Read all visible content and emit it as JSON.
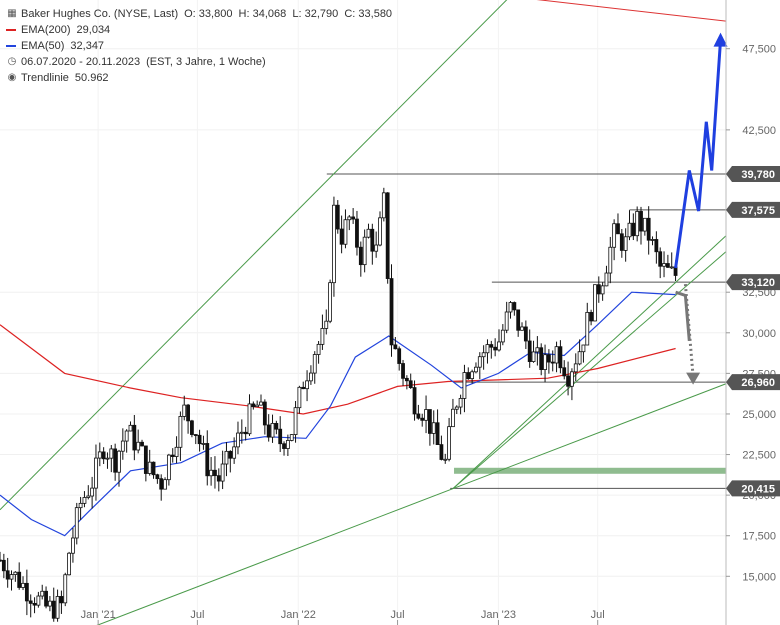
{
  "header": {
    "instrument": "Baker Hughes Co. (NYSE, Last)",
    "ohlc": "O: 33,800  H: 34,068  L: 32,790  C: 33,580",
    "ema200_label": "EMA(200)",
    "ema200_value": "29,034",
    "ema50_label": "EMA(50)",
    "ema50_value": "32,347",
    "range": "06.07.2020 - 20.11.2023",
    "range_detail": "(EST, 3 Jahre, 1 Woche)",
    "trendline_label": "Trendlinie",
    "trendline_value": "50.962"
  },
  "chart_data": {
    "type": "candlestick",
    "title": "Baker Hughes Co. (NYSE, Last)",
    "x_ticks": [
      {
        "date": "2021-01-01",
        "label": "Jan '21"
      },
      {
        "date": "2021-07-01",
        "label": "Jul"
      },
      {
        "date": "2022-01-01",
        "label": "Jan '22"
      },
      {
        "date": "2022-07-01",
        "label": "Jul"
      },
      {
        "date": "2023-01-01",
        "label": "Jan '23"
      },
      {
        "date": "2023-07-01",
        "label": "Jul"
      }
    ],
    "y_ticks": [
      {
        "value": 15.0,
        "label": "15,000"
      },
      {
        "value": 17.5,
        "label": "17,500"
      },
      {
        "value": 20.0,
        "label": "20,000"
      },
      {
        "value": 22.5,
        "label": "22,500"
      },
      {
        "value": 25.0,
        "label": "25,000"
      },
      {
        "value": 27.5,
        "label": "27,500"
      },
      {
        "value": 30.0,
        "label": "30,000"
      },
      {
        "value": 32.5,
        "label": "32,500"
      },
      {
        "value": 42.5,
        "label": "42,500"
      },
      {
        "value": 47.5,
        "label": "47,500"
      }
    ],
    "xlim": [
      "2020-07-06",
      "2024-02-20"
    ],
    "ylim": [
      12.0,
      50.5
    ],
    "price_closes": [
      [
        "2020-07-06",
        16.0
      ],
      [
        "2020-08-03",
        15.0
      ],
      [
        "2020-09-01",
        13.9
      ],
      [
        "2020-10-01",
        13.0
      ],
      [
        "2020-10-26",
        13.2
      ],
      [
        "2020-11-09",
        16.5
      ],
      [
        "2020-11-30",
        19.5
      ],
      [
        "2020-12-21",
        20.8
      ],
      [
        "2021-01-11",
        23.0
      ],
      [
        "2021-02-01",
        22.2
      ],
      [
        "2021-02-22",
        24.0
      ],
      [
        "2021-03-15",
        23.0
      ],
      [
        "2021-04-05",
        21.5
      ],
      [
        "2021-04-26",
        20.8
      ],
      [
        "2021-05-17",
        23.0
      ],
      [
        "2021-06-07",
        25.2
      ],
      [
        "2021-06-28",
        24.0
      ],
      [
        "2021-07-19",
        21.8
      ],
      [
        "2021-08-09",
        21.0
      ],
      [
        "2021-09-01",
        22.5
      ],
      [
        "2021-09-27",
        24.5
      ],
      [
        "2021-10-18",
        25.5
      ],
      [
        "2021-11-08",
        24.0
      ],
      [
        "2021-11-29",
        23.3
      ],
      [
        "2021-12-20",
        24.0
      ],
      [
        "2022-01-10",
        27.0
      ],
      [
        "2022-02-01",
        29.0
      ],
      [
        "2022-02-21",
        30.0
      ],
      [
        "2022-03-07",
        37.5
      ],
      [
        "2022-03-21",
        36.0
      ],
      [
        "2022-04-04",
        37.0
      ],
      [
        "2022-04-25",
        34.8
      ],
      [
        "2022-05-09",
        36.2
      ],
      [
        "2022-05-23",
        35.0
      ],
      [
        "2022-06-06",
        38.0
      ],
      [
        "2022-06-20",
        29.5
      ],
      [
        "2022-07-11",
        27.5
      ],
      [
        "2022-08-01",
        25.8
      ],
      [
        "2022-08-22",
        25.0
      ],
      [
        "2022-09-12",
        23.0
      ],
      [
        "2022-09-26",
        22.0
      ],
      [
        "2022-10-10",
        25.0
      ],
      [
        "2022-10-31",
        27.5
      ],
      [
        "2022-11-21",
        28.5
      ],
      [
        "2022-12-12",
        29.0
      ],
      [
        "2023-01-02",
        29.5
      ],
      [
        "2023-01-23",
        31.5
      ],
      [
        "2023-02-13",
        30.0
      ],
      [
        "2023-03-06",
        28.5
      ],
      [
        "2023-03-27",
        28.0
      ],
      [
        "2023-04-17",
        29.0
      ],
      [
        "2023-05-08",
        27.5
      ],
      [
        "2023-05-29",
        29.0
      ],
      [
        "2023-06-19",
        31.5
      ],
      [
        "2023-07-10",
        33.5
      ],
      [
        "2023-07-31",
        36.0
      ],
      [
        "2023-08-21",
        35.5
      ],
      [
        "2023-09-11",
        37.0
      ],
      [
        "2023-10-02",
        36.0
      ],
      [
        "2023-10-23",
        34.0
      ],
      [
        "2023-11-13",
        33.6
      ],
      [
        "2023-11-20",
        33.58
      ]
    ],
    "ema200": [
      [
        "2020-07-06",
        30.5
      ],
      [
        "2020-11-01",
        27.5
      ],
      [
        "2021-03-01",
        26.6
      ],
      [
        "2021-06-01",
        26.0
      ],
      [
        "2021-10-01",
        25.5
      ],
      [
        "2022-01-10",
        25.0
      ],
      [
        "2022-04-01",
        25.6
      ],
      [
        "2022-07-01",
        26.7
      ],
      [
        "2022-10-01",
        27.0
      ],
      [
        "2023-01-01",
        27.1
      ],
      [
        "2023-04-01",
        27.2
      ],
      [
        "2023-07-01",
        27.8
      ],
      [
        "2023-11-20",
        29.03
      ]
    ],
    "ema50": [
      [
        "2020-07-06",
        20.0
      ],
      [
        "2020-09-01",
        18.5
      ],
      [
        "2020-11-01",
        17.5
      ],
      [
        "2020-12-15",
        19.0
      ],
      [
        "2021-03-01",
        21.5
      ],
      [
        "2021-06-01",
        22.0
      ],
      [
        "2021-08-15",
        23.2
      ],
      [
        "2021-11-01",
        23.6
      ],
      [
        "2022-01-15",
        23.5
      ],
      [
        "2022-03-01",
        25.5
      ],
      [
        "2022-04-15",
        28.5
      ],
      [
        "2022-06-15",
        29.8
      ],
      [
        "2022-09-01",
        28.0
      ],
      [
        "2022-10-25",
        26.6
      ],
      [
        "2023-01-01",
        27.5
      ],
      [
        "2023-03-01",
        28.8
      ],
      [
        "2023-05-01",
        28.6
      ],
      [
        "2023-07-01",
        30.5
      ],
      [
        "2023-09-01",
        32.5
      ],
      [
        "2023-11-20",
        32.35
      ]
    ],
    "horizontal_levels": [
      {
        "value": 39.78,
        "label": "39,780",
        "from": "2022-02-22",
        "color": "#555555"
      },
      {
        "value": 37.575,
        "label": "37,575",
        "from": "2023-08-28",
        "color": "#555555"
      },
      {
        "value": 33.12,
        "label": "33,120",
        "from": "2022-12-20",
        "color": "#555555"
      },
      {
        "value": 26.96,
        "label": "26,960",
        "from": "2022-10-12",
        "color": "#555555"
      },
      {
        "value": 20.415,
        "label": "20,415",
        "from": "2022-10-05",
        "color": "#555555"
      }
    ],
    "support_zone": {
      "value": 21.5,
      "from": "2022-10-12",
      "color": "#8fbc8f"
    },
    "trendlines": [
      {
        "points": [
          [
            "2020-07-06",
            19.1
          ],
          [
            "2022-03-07",
            39.8
          ]
        ],
        "color": "#4a9a4a",
        "extend": true
      },
      {
        "points": [
          [
            "2020-11-23",
            11.5
          ],
          [
            "2022-10-10",
            20.4
          ]
        ],
        "color": "#4a9a4a",
        "extend": true
      },
      {
        "points": [
          [
            "2022-10-10",
            20.4
          ],
          [
            "2023-11-20",
            33.1
          ]
        ],
        "color": "#4a9a4a",
        "extend": true
      },
      {
        "points": [
          [
            "2022-10-10",
            20.4
          ],
          [
            "2023-11-20",
            32.3
          ]
        ],
        "color": "#4a9a4a",
        "extend": true
      },
      {
        "points": [
          [
            "2020-07-06",
            54.3
          ],
          [
            "2024-02-20",
            49.2
          ]
        ],
        "color": "#dd3333",
        "extend": false
      }
    ],
    "scenario_up": {
      "color": "#1f3fe0",
      "points": [
        [
          "2023-11-20",
          34.0
        ],
        [
          "2023-12-15",
          40.0
        ],
        [
          "2024-01-01",
          37.5
        ],
        [
          "2024-01-15",
          43.0
        ],
        [
          "2024-01-25",
          40.0
        ],
        [
          "2024-02-10",
          48.0
        ]
      ]
    },
    "scenario_down_bounce": {
      "color": "#777777",
      "points": [
        [
          "2023-11-20",
          32.5
        ],
        [
          "2023-12-08",
          32.3
        ],
        [
          "2023-12-15",
          29.5
        ]
      ]
    },
    "scenario_down_dotted": {
      "color": "#777777",
      "points": [
        [
          "2023-12-08",
          33.0
        ],
        [
          "2023-12-22",
          27.3
        ]
      ]
    },
    "ema200_color": "#dd2222",
    "ema50_color": "#2244dd",
    "candle_color": "#111111"
  }
}
